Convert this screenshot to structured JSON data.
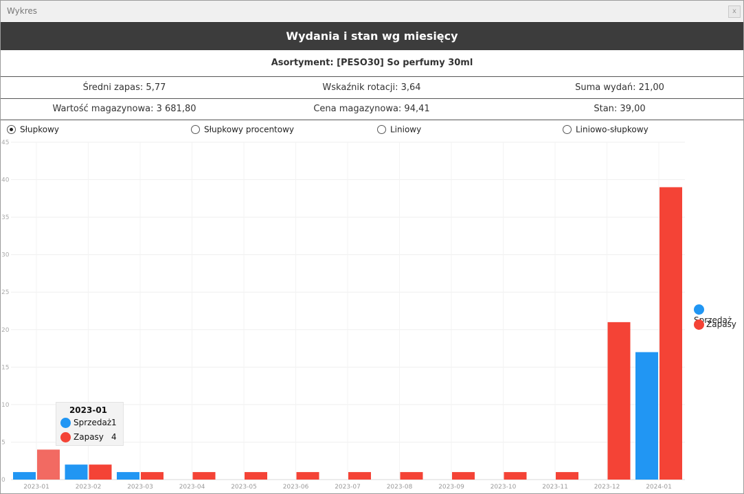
{
  "window": {
    "title": "Wykres",
    "close_label": "x"
  },
  "header": {
    "title": "Wydania i stan wg miesięcy"
  },
  "product": {
    "label": "Asortyment: [PESO30] So perfumy 30ml"
  },
  "stats": {
    "avg_stock": "Średni zapas: 5,77",
    "rotation": "Wskaźnik rotacji: 3,64",
    "sum_out": "Suma wydań: 21,00",
    "stock_value": "Wartość magazynowa: 3 681,80",
    "stock_price": "Cena magazynowa: 94,41",
    "state": "Stan: 39,00"
  },
  "chart_type_options": [
    {
      "label": "Słupkowy",
      "checked": true
    },
    {
      "label": "Słupkowy procentowy",
      "checked": false
    },
    {
      "label": "Liniowy",
      "checked": false
    },
    {
      "label": "Liniowo-słupkowy",
      "checked": false
    }
  ],
  "colors": {
    "sprzedaz": "#2196f3",
    "zapasy": "#f44336",
    "zapasy_highlight": "#f26a62",
    "header_bg": "#3c3c3c"
  },
  "legend": {
    "items": [
      {
        "label": "Sprzedaż",
        "color": "#2196f3"
      },
      {
        "label": "Zapasy",
        "color": "#f44336"
      }
    ]
  },
  "tooltip": {
    "title": "2023-01",
    "rows": [
      {
        "label": "Sprzedaż",
        "value": "1"
      },
      {
        "label": "Zapasy",
        "value": "4"
      }
    ]
  },
  "chart_data": {
    "type": "bar",
    "categories": [
      "2023-01",
      "2023-02",
      "2023-03",
      "2023-04",
      "2023-05",
      "2023-06",
      "2023-07",
      "2023-08",
      "2023-09",
      "2023-10",
      "2023-11",
      "2023-12",
      "2024-01"
    ],
    "series": [
      {
        "name": "Sprzedaż",
        "values": [
          1,
          2,
          1,
          0,
          0,
          0,
          0,
          0,
          0,
          0,
          0,
          0,
          17
        ]
      },
      {
        "name": "Zapasy",
        "values": [
          4,
          2,
          1,
          1,
          1,
          1,
          1,
          1,
          1,
          1,
          1,
          21,
          39
        ]
      }
    ],
    "yticks": [
      0,
      5,
      10,
      15,
      20,
      25,
      30,
      35,
      40,
      45
    ],
    "ylim": [
      0,
      45
    ],
    "grid": true,
    "legend_position": "right",
    "highlighted_category": "2023-01"
  }
}
